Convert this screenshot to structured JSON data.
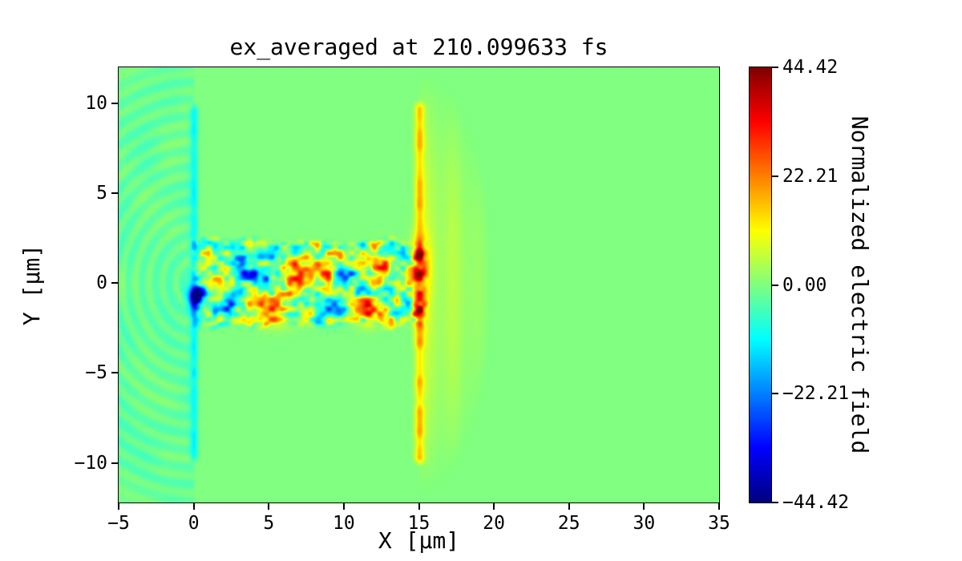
{
  "chart_data": {
    "type": "heatmap",
    "title": "ex_averaged at 210.099633 fs",
    "xlabel": "X [μm]",
    "ylabel": "Y [μm]",
    "xlim": [
      -5,
      35
    ],
    "ylim": [
      -12.2,
      12
    ],
    "grid": false,
    "colormap": "jet",
    "xticks": {
      "values": [
        -5,
        0,
        5,
        10,
        15,
        20,
        25,
        30,
        35
      ],
      "labels": [
        "−5",
        "0",
        "5",
        "10",
        "15",
        "20",
        "25",
        "30",
        "35"
      ]
    },
    "yticks": {
      "values": [
        -10,
        -5,
        0,
        5,
        10
      ],
      "labels": [
        "−10",
        "−5",
        "0",
        "5",
        "10"
      ]
    },
    "colorbar": {
      "label": "Normalized electric field",
      "vmin": -44.42,
      "vmax": 44.42,
      "ticks": {
        "values": [
          44.42,
          22.21,
          0,
          -22.21,
          -44.42
        ],
        "labels": [
          "44.42",
          "22.21",
          "0.00",
          "−22.21",
          "−44.42"
        ]
      }
    },
    "field": {
      "background_value": 0,
      "seed": 7,
      "backscatter_region": {
        "x_range": [
          -5,
          0
        ],
        "base_value": -2.2,
        "ripple_amplitude": 1.9,
        "ripple_frequency": 7.0,
        "noise_amplitude": 1.6,
        "radial_extent": 12.8
      },
      "front_interface_line": {
        "x": 0.02,
        "width": 0.18,
        "y_range": [
          -10.1,
          10.1
        ],
        "value": -11,
        "value_noise": 3
      },
      "exit_interface_line": {
        "x": 15.05,
        "width": 0.22,
        "y_range": [
          -10.2,
          10.2
        ],
        "value": 16,
        "value_noise": 5
      },
      "transmitted_bow": {
        "cx": 15.1,
        "cy": 0,
        "rx": 4.9,
        "ry": 11.7,
        "value": 6
      },
      "speckle_channel": {
        "x_range": [
          0,
          15.3
        ],
        "y_half_width": 2.55,
        "edge_softness": 0.5,
        "amplitude": 24,
        "scale1": 0.75,
        "scale2": 0.38
      },
      "blobs": [
        {
          "x": 0.15,
          "y": -0.75,
          "sx": 0.38,
          "sy": 0.55,
          "v": -34
        },
        {
          "x": 1.7,
          "y": 0.5,
          "sx": 0.45,
          "sy": 0.4,
          "v": 16
        },
        {
          "x": 2.6,
          "y": -1.2,
          "sx": 0.5,
          "sy": 0.45,
          "v": -18
        },
        {
          "x": 3.3,
          "y": 0.7,
          "sx": 0.5,
          "sy": 0.45,
          "v": -22
        },
        {
          "x": 4.7,
          "y": 0.35,
          "sx": 0.6,
          "sy": 0.55,
          "v": -28
        },
        {
          "x": 5.4,
          "y": -1.25,
          "sx": 0.8,
          "sy": 0.6,
          "v": 34
        },
        {
          "x": 6.9,
          "y": 0.5,
          "sx": 0.5,
          "sy": 0.5,
          "v": 20
        },
        {
          "x": 8.35,
          "y": 0.55,
          "sx": 0.5,
          "sy": 0.5,
          "v": 26
        },
        {
          "x": 9.0,
          "y": -1.5,
          "sx": 0.55,
          "sy": 0.45,
          "v": -26
        },
        {
          "x": 10.1,
          "y": 0.4,
          "sx": 0.45,
          "sy": 0.5,
          "v": -20
        },
        {
          "x": 11.6,
          "y": -1.5,
          "sx": 0.5,
          "sy": 0.5,
          "v": 30
        },
        {
          "x": 12.4,
          "y": 1.05,
          "sx": 0.5,
          "sy": 0.6,
          "v": 26
        },
        {
          "x": 12.75,
          "y": -0.35,
          "sx": 0.4,
          "sy": 0.4,
          "v": -20
        },
        {
          "x": 15.05,
          "y": 0.9,
          "sx": 0.42,
          "sy": 1.1,
          "v": 24
        },
        {
          "x": 15.05,
          "y": -1.7,
          "sx": 0.3,
          "sy": 0.75,
          "v": 14
        }
      ]
    }
  }
}
